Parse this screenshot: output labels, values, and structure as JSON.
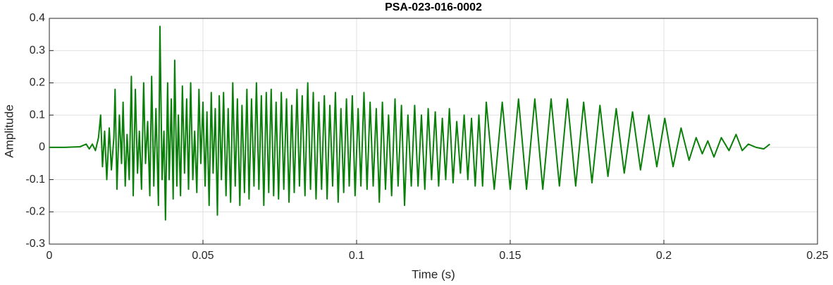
{
  "chart_data": {
    "type": "line",
    "title": "PSA-023-016-0002",
    "x_label": "Time (s)",
    "y_label": "Amplitude",
    "xlim": [
      0,
      0.25
    ],
    "xticks": [
      0,
      0.05,
      0.1,
      0.15,
      0.2,
      0.25
    ],
    "ylim": [
      -0.3,
      0.4
    ],
    "yticks": [
      -0.3,
      -0.2,
      -0.1,
      0,
      0.1,
      0.2,
      0.3,
      0.4
    ],
    "grid": true,
    "x": [
      0,
      0.005,
      0.01,
      0.012,
      0.013,
      0.014,
      0.015,
      0.016,
      0.0167,
      0.0173,
      0.018,
      0.0187,
      0.0195,
      0.0202,
      0.021,
      0.0214,
      0.022,
      0.0228,
      0.0235,
      0.024,
      0.0247,
      0.0253,
      0.026,
      0.0267,
      0.0273,
      0.028,
      0.0287,
      0.0293,
      0.03,
      0.0307,
      0.0313,
      0.032,
      0.0327,
      0.0333,
      0.034,
      0.0347,
      0.0355,
      0.036,
      0.0367,
      0.0373,
      0.0378,
      0.0385,
      0.039,
      0.0397,
      0.0403,
      0.0408,
      0.0415,
      0.042,
      0.0427,
      0.0433,
      0.044,
      0.0447,
      0.0453,
      0.046,
      0.0467,
      0.0473,
      0.048,
      0.0487,
      0.0493,
      0.05,
      0.0507,
      0.0513,
      0.052,
      0.0527,
      0.0533,
      0.054,
      0.0547,
      0.0553,
      0.056,
      0.0567,
      0.0575,
      0.0582,
      0.059,
      0.0597,
      0.0605,
      0.0612,
      0.062,
      0.0627,
      0.0635,
      0.0643,
      0.065,
      0.0658,
      0.0666,
      0.0674,
      0.0682,
      0.069,
      0.0698,
      0.0706,
      0.0714,
      0.0722,
      0.073,
      0.0738,
      0.0746,
      0.0755,
      0.0763,
      0.0772,
      0.078,
      0.0789,
      0.0797,
      0.0806,
      0.0814,
      0.0823,
      0.0832,
      0.0841,
      0.085,
      0.0859,
      0.0868,
      0.0877,
      0.0886,
      0.0895,
      0.0904,
      0.0913,
      0.0922,
      0.0931,
      0.094,
      0.0949,
      0.0958,
      0.0967,
      0.0976,
      0.0986,
      0.0995,
      0.1005,
      0.1014,
      0.1024,
      0.1034,
      0.1044,
      0.1054,
      0.1064,
      0.1074,
      0.1084,
      0.1094,
      0.1104,
      0.1114,
      0.1125,
      0.1135,
      0.1146,
      0.1156,
      0.1167,
      0.1178,
      0.1189,
      0.12,
      0.1211,
      0.1222,
      0.1233,
      0.1244,
      0.1256,
      0.1267,
      0.1279,
      0.129,
      0.1302,
      0.1314,
      0.1326,
      0.1338,
      0.135,
      0.1362,
      0.1374,
      0.1386,
      0.1398,
      0.141,
      0.1422,
      0.1448,
      0.1474,
      0.15,
      0.1527,
      0.1553,
      0.158,
      0.1606,
      0.1633,
      0.166,
      0.1686,
      0.1713,
      0.1739,
      0.1766,
      0.1792,
      0.1818,
      0.1845,
      0.1871,
      0.1898,
      0.1924,
      0.1951,
      0.1977,
      0.2003,
      0.203,
      0.2056,
      0.2082,
      0.2105,
      0.2125,
      0.2143,
      0.2163,
      0.2187,
      0.2212,
      0.2235,
      0.2255,
      0.2275,
      0.23,
      0.2325,
      0.2345
    ],
    "series": [
      {
        "name": "Amplitude",
        "color": "#0a800a",
        "values": [
          0,
          0,
          0.002,
          0.01,
          -0.005,
          0.01,
          -0.01,
          0.03,
          0.1,
          -0.06,
          0.05,
          -0.1,
          0.06,
          -0.07,
          0.03,
          0.18,
          -0.13,
          0.1,
          -0.05,
          0.14,
          -0.12,
          0.04,
          -0.1,
          0.22,
          -0.15,
          0.18,
          -0.08,
          0.05,
          -0.13,
          0.2,
          -0.05,
          0.08,
          -0.15,
          0.22,
          -0.12,
          0.12,
          -0.18,
          0.375,
          -0.1,
          0.05,
          -0.225,
          0.2,
          -0.1,
          0.15,
          -0.16,
          0.27,
          -0.12,
          0.1,
          -0.15,
          0.19,
          -0.08,
          0.15,
          -0.13,
          0.2,
          -0.1,
          0.05,
          -0.14,
          0.18,
          -0.05,
          0.14,
          -0.12,
          0.11,
          -0.18,
          0.17,
          -0.08,
          0.12,
          -0.21,
          0.16,
          -0.1,
          0.17,
          -0.15,
          0.12,
          -0.17,
          0.2,
          -0.12,
          0.15,
          -0.18,
          0.13,
          -0.14,
          0.18,
          -0.16,
          0.15,
          -0.12,
          0.2,
          -0.13,
          0.16,
          -0.18,
          0.17,
          -0.14,
          0.18,
          -0.15,
          0.14,
          -0.16,
          0.17,
          -0.13,
          0.15,
          -0.17,
          0.13,
          -0.14,
          0.18,
          -0.12,
          0.16,
          -0.15,
          0.2,
          -0.13,
          0.17,
          -0.16,
          0.14,
          -0.13,
          0.16,
          -0.16,
          0.13,
          -0.12,
          0.17,
          -0.17,
          0.12,
          -0.14,
          0.15,
          -0.12,
          0.16,
          -0.15,
          0.12,
          -0.12,
          0.17,
          -0.13,
          0.14,
          -0.12,
          0.12,
          -0.17,
          0.14,
          -0.13,
          0.1,
          -0.15,
          0.15,
          -0.12,
          0.13,
          -0.18,
          0.1,
          -0.12,
          0.13,
          -0.12,
          0.1,
          -0.13,
          0.12,
          -0.1,
          0.11,
          -0.12,
          0.09,
          -0.1,
          0.12,
          -0.11,
          0.08,
          -0.08,
          0.1,
          -0.1,
          0.09,
          -0.12,
          0.1,
          -0.12,
          0.14,
          -0.13,
          0.14,
          -0.13,
          0.15,
          -0.13,
          0.15,
          -0.13,
          0.15,
          -0.12,
          0.15,
          -0.12,
          0.14,
          -0.11,
          0.13,
          -0.09,
          0.12,
          -0.08,
          0.11,
          -0.07,
          0.1,
          -0.06,
          0.09,
          -0.06,
          0.06,
          -0.04,
          0.03,
          -0.02,
          0.02,
          -0.03,
          0.03,
          -0.01,
          0.04,
          -0.01,
          0.01,
          0,
          -0.005,
          0.01
        ]
      }
    ]
  }
}
